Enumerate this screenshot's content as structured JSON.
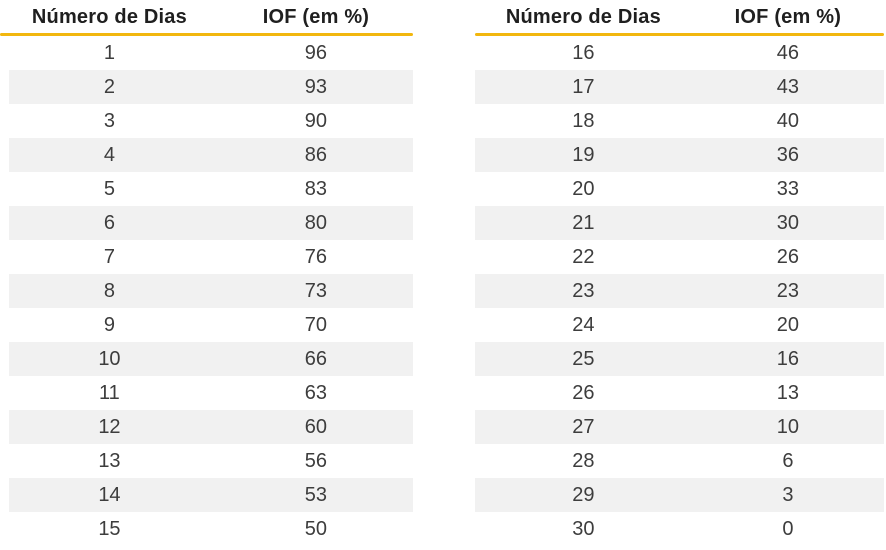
{
  "colors": {
    "accent_underline": "#F2B70E",
    "row_stripe": "#F1F1F1",
    "data_text": "#3D3D3D",
    "header_text": "#1F1F1F"
  },
  "chart_data": {
    "type": "table",
    "title": "",
    "tables": [
      {
        "headers": [
          "Número de Dias",
          "IOF (em %)"
        ],
        "rows": [
          [
            1,
            96
          ],
          [
            2,
            93
          ],
          [
            3,
            90
          ],
          [
            4,
            86
          ],
          [
            5,
            83
          ],
          [
            6,
            80
          ],
          [
            7,
            76
          ],
          [
            8,
            73
          ],
          [
            9,
            70
          ],
          [
            10,
            66
          ],
          [
            11,
            63
          ],
          [
            12,
            60
          ],
          [
            13,
            56
          ],
          [
            14,
            53
          ],
          [
            15,
            50
          ]
        ]
      },
      {
        "headers": [
          "Número de Dias",
          "IOF (em %)"
        ],
        "rows": [
          [
            16,
            46
          ],
          [
            17,
            43
          ],
          [
            18,
            40
          ],
          [
            19,
            36
          ],
          [
            20,
            33
          ],
          [
            21,
            30
          ],
          [
            22,
            26
          ],
          [
            23,
            23
          ],
          [
            24,
            20
          ],
          [
            25,
            16
          ],
          [
            26,
            13
          ],
          [
            27,
            10
          ],
          [
            28,
            6
          ],
          [
            29,
            3
          ],
          [
            30,
            0
          ]
        ]
      }
    ]
  }
}
